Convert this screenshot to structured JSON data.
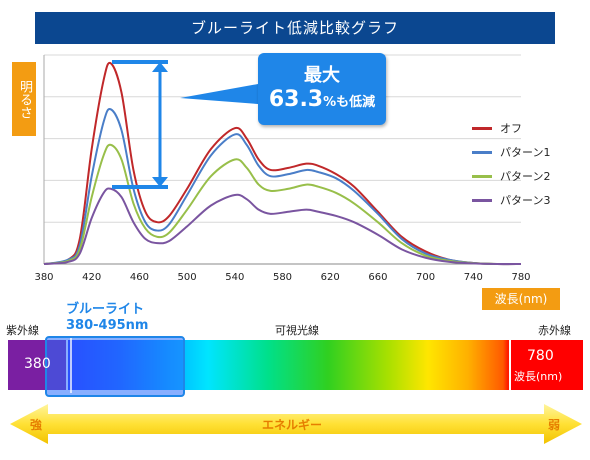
{
  "title": "ブルーライト低減比較グラフ",
  "y_axis_label": "明るさ",
  "x_axis_unit": "波長(nm)",
  "callout": {
    "line1": "最大",
    "percent": "63.3",
    "suffix_pct": "%",
    "suffix_text": "も低減"
  },
  "chart_data": {
    "type": "line",
    "xlabel": "波長(nm)",
    "ylabel": "明るさ",
    "title": "ブルーライト低減比較グラフ",
    "x_ticks": [
      380,
      420,
      460,
      500,
      540,
      580,
      620,
      660,
      700,
      740,
      780
    ],
    "xlim": [
      380,
      780
    ],
    "ylim": [
      0,
      1
    ],
    "grid": true,
    "legend_position": "right",
    "x": [
      380,
      400,
      410,
      420,
      430,
      436,
      445,
      455,
      465,
      475,
      485,
      500,
      520,
      540,
      550,
      560,
      570,
      585,
      600,
      610,
      625,
      640,
      660,
      680,
      700,
      720,
      740,
      760,
      780
    ],
    "series": [
      {
        "name": "オフ",
        "color": "#c0282a",
        "values": [
          0.0,
          0.02,
          0.12,
          0.55,
          0.88,
          0.96,
          0.82,
          0.45,
          0.25,
          0.2,
          0.23,
          0.36,
          0.55,
          0.65,
          0.6,
          0.5,
          0.45,
          0.46,
          0.48,
          0.47,
          0.43,
          0.37,
          0.25,
          0.13,
          0.06,
          0.02,
          0.005,
          0.0,
          0.0
        ]
      },
      {
        "name": "パターン1",
        "color": "#4a7ec8",
        "values": [
          0.0,
          0.02,
          0.09,
          0.42,
          0.68,
          0.74,
          0.64,
          0.36,
          0.2,
          0.16,
          0.19,
          0.33,
          0.52,
          0.62,
          0.57,
          0.47,
          0.42,
          0.43,
          0.45,
          0.44,
          0.41,
          0.35,
          0.24,
          0.12,
          0.05,
          0.02,
          0.005,
          0.0,
          0.0
        ]
      },
      {
        "name": "パターン2",
        "color": "#98bf4a",
        "values": [
          0.0,
          0.015,
          0.07,
          0.32,
          0.52,
          0.57,
          0.5,
          0.29,
          0.17,
          0.13,
          0.15,
          0.26,
          0.42,
          0.5,
          0.46,
          0.38,
          0.35,
          0.36,
          0.38,
          0.37,
          0.34,
          0.29,
          0.2,
          0.1,
          0.04,
          0.015,
          0.004,
          0.0,
          0.0
        ]
      },
      {
        "name": "パターン3",
        "color": "#7a55a0",
        "values": [
          0.0,
          0.01,
          0.05,
          0.22,
          0.34,
          0.36,
          0.32,
          0.2,
          0.12,
          0.1,
          0.11,
          0.18,
          0.28,
          0.33,
          0.31,
          0.26,
          0.24,
          0.25,
          0.26,
          0.25,
          0.23,
          0.2,
          0.14,
          0.07,
          0.03,
          0.01,
          0.003,
          0.0,
          0.0
        ]
      }
    ]
  },
  "spectrum": {
    "bluelight_title": "ブルーライト",
    "bluelight_range": "380-495nm",
    "uv_label": "紫外線",
    "visible_label": "可視光線",
    "ir_label": "赤外線",
    "left_value": "380",
    "right_value": "780",
    "right_unit": "波長(nm)"
  },
  "energy": {
    "strong": "強",
    "label": "エネルギー",
    "weak": "弱"
  }
}
